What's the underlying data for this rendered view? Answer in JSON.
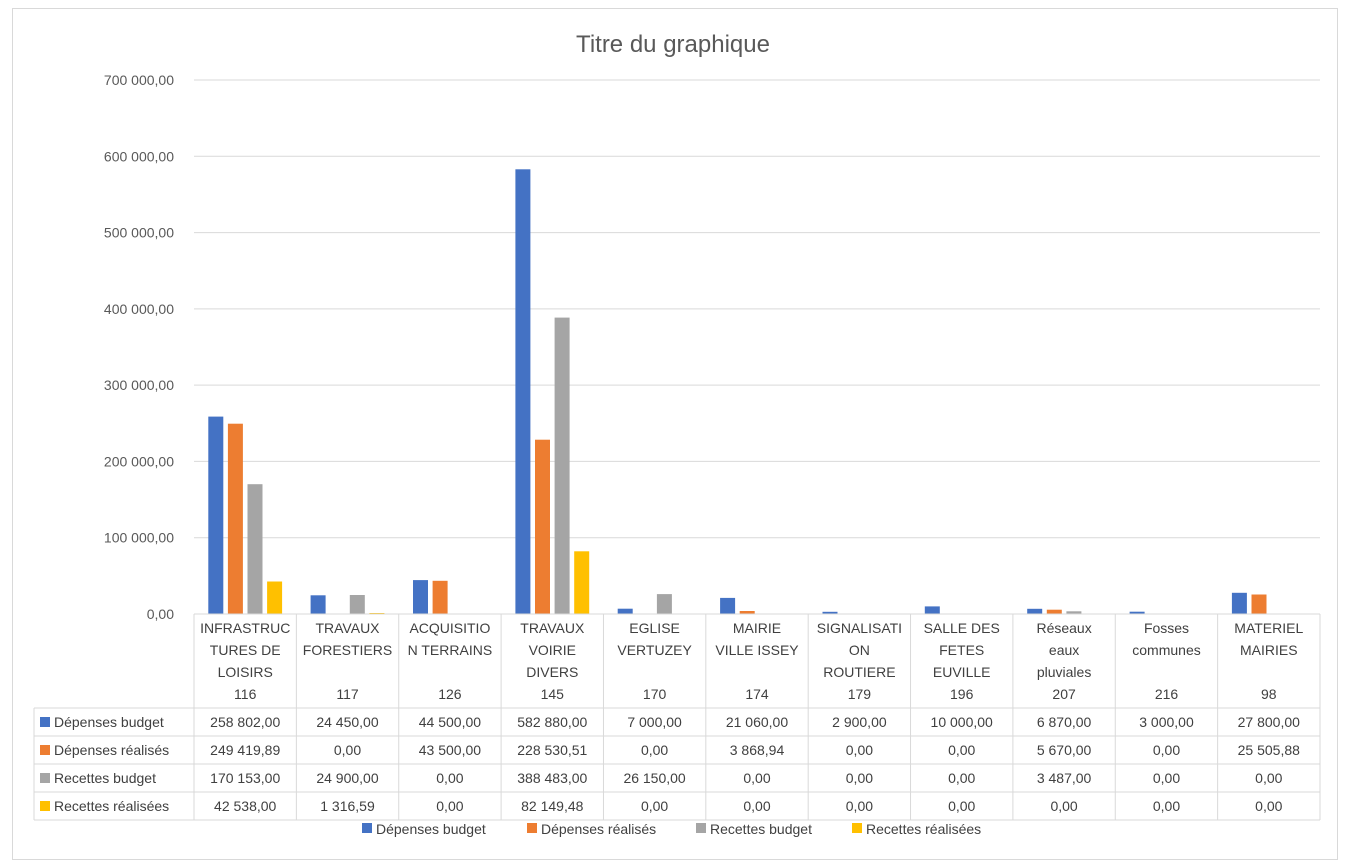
{
  "chart_data": {
    "type": "bar",
    "title": "Titre du graphique",
    "xlabel": "",
    "ylabel": "",
    "ylim": [
      0,
      700000
    ],
    "y_ticks": [
      "0,00",
      "100 000,00",
      "200 000,00",
      "300 000,00",
      "400 000,00",
      "500 000,00",
      "600 000,00",
      "700 000,00"
    ],
    "grid": true,
    "legend_position": "bottom",
    "categories": [
      {
        "label_lines": [
          "INFRASTRUC",
          "TURES DE",
          "LOISIRS"
        ],
        "code": "116"
      },
      {
        "label_lines": [
          "TRAVAUX",
          "FORESTIERS"
        ],
        "code": "117"
      },
      {
        "label_lines": [
          "ACQUISITIO",
          "N TERRAINS"
        ],
        "code": "126"
      },
      {
        "label_lines": [
          "TRAVAUX",
          "VOIRIE",
          "DIVERS"
        ],
        "code": "145"
      },
      {
        "label_lines": [
          "EGLISE",
          "VERTUZEY"
        ],
        "code": "170"
      },
      {
        "label_lines": [
          "MAIRIE",
          "VILLE ISSEY"
        ],
        "code": "174"
      },
      {
        "label_lines": [
          "SIGNALISATI",
          "ON",
          "ROUTIERE"
        ],
        "code": "179"
      },
      {
        "label_lines": [
          "SALLE DES",
          "FETES",
          "EUVILLE"
        ],
        "code": "196"
      },
      {
        "label_lines": [
          "Réseaux",
          "eaux",
          "pluviales"
        ],
        "code": "207"
      },
      {
        "label_lines": [
          "Fosses",
          "communes"
        ],
        "code": "216"
      },
      {
        "label_lines": [
          "MATERIEL",
          "MAIRIES"
        ],
        "code": "98"
      }
    ],
    "series": [
      {
        "name": "Dépenses budget",
        "color": "#4472c4",
        "values": [
          258802,
          24450,
          44500,
          582880,
          7000,
          21060,
          2900,
          10000,
          6870,
          3000,
          27800
        ],
        "labels": [
          "258 802,00",
          "24 450,00",
          "44 500,00",
          "582 880,00",
          "7 000,00",
          "21 060,00",
          "2 900,00",
          "10 000,00",
          "6 870,00",
          "3 000,00",
          "27 800,00"
        ]
      },
      {
        "name": "Dépenses réalisés",
        "color": "#ed7d31",
        "values": [
          249419.89,
          0,
          43500,
          228530.51,
          0,
          3868.94,
          0,
          0,
          5670,
          0,
          25505.88
        ],
        "labels": [
          "249 419,89",
          "0,00",
          "43 500,00",
          "228 530,51",
          "0,00",
          "3 868,94",
          "0,00",
          "0,00",
          "5 670,00",
          "0,00",
          "25 505,88"
        ]
      },
      {
        "name": "Recettes budget",
        "color": "#a5a5a5",
        "values": [
          170153,
          24900,
          0,
          388483,
          26150,
          0,
          0,
          0,
          3487,
          0,
          0
        ],
        "labels": [
          "170 153,00",
          "24 900,00",
          "0,00",
          "388 483,00",
          "26 150,00",
          "0,00",
          "0,00",
          "0,00",
          "3 487,00",
          "0,00",
          "0,00"
        ]
      },
      {
        "name": "Recettes réalisées",
        "color": "#ffc000",
        "values": [
          42538,
          1316.59,
          0,
          82149.48,
          0,
          0,
          0,
          0,
          0,
          0,
          0
        ],
        "labels": [
          "42 538,00",
          "1 316,59",
          "0,00",
          "82 149,48",
          "0,00",
          "0,00",
          "0,00",
          "0,00",
          "0,00",
          "0,00",
          "0,00"
        ]
      }
    ]
  }
}
